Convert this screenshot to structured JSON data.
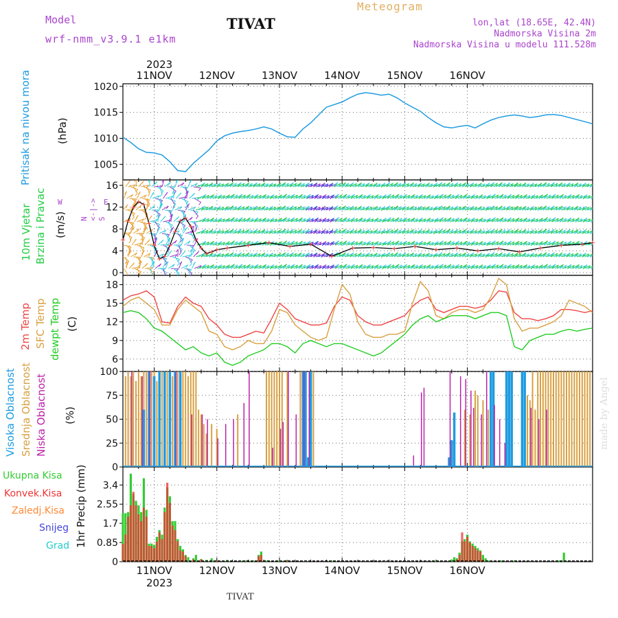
{
  "header": {
    "model_label": "Model",
    "model_name": "wrf-nmm_v3.9.1 e1km",
    "station": "TIVAT",
    "meteogram": "Meteogram",
    "lonlat": "lon,lat (18.65E, 42.4N)",
    "altitude": "Nadmorska Visina 2m",
    "model_altitude": "Nadmorska Visina u modelu 111.528m",
    "year_top": "2023",
    "year_bottom": "2023",
    "footer_station": "TIVAT",
    "watermark": "made by Angel"
  },
  "colors": {
    "pressure": "#1e9be0",
    "wind_green": "#22cc44",
    "wind_cyan": "#33ccdd",
    "wind_blue": "#3344dd",
    "wind_purple": "#9933cc",
    "wind_orange": "#e8a030",
    "t2m": "#ee4444",
    "sfc": "#d8a040",
    "dew": "#22cc22",
    "cloud_high": "#1e9be0",
    "cloud_mid": "#d8a040",
    "cloud_low": "#bb22aa",
    "precip_total": "#33cc33",
    "precip_conv": "#ee3333",
    "precip_freeze": "#ff8833",
    "precip_snow": "#4444dd",
    "precip_hail": "#22cccc"
  },
  "chart_data": [
    {
      "type": "line",
      "panel": "pressure",
      "ylabel": [
        "Pritisak na nivou mora",
        "(hPa)"
      ],
      "ylim": [
        1002,
        1020.5
      ],
      "yticks": [
        "1005",
        "1010",
        "1015",
        "1020"
      ],
      "ytick_values": [
        1005,
        1010,
        1015,
        1020
      ],
      "x": [
        0,
        3,
        6,
        9,
        12,
        15,
        18,
        21,
        24,
        27,
        30,
        33,
        36,
        39,
        42,
        45,
        48,
        51,
        54,
        57,
        60,
        63,
        66,
        69,
        72,
        75,
        78,
        81,
        84,
        87,
        90,
        93,
        96,
        99,
        102,
        105,
        108,
        111,
        114,
        117,
        120,
        123,
        126,
        129,
        132,
        135,
        138,
        141,
        144,
        147,
        150,
        153,
        156,
        159,
        162,
        165,
        168,
        171,
        174,
        177,
        180
      ],
      "values": [
        1010.2,
        1009.2,
        1008.0,
        1007.3,
        1007.2,
        1006.8,
        1005.5,
        1003.8,
        1003.6,
        1005.2,
        1006.5,
        1007.8,
        1009.5,
        1010.5,
        1011.0,
        1011.3,
        1011.5,
        1011.8,
        1012.2,
        1011.8,
        1011.0,
        1010.3,
        1010.2,
        1011.8,
        1013.0,
        1014.5,
        1016.0,
        1016.5,
        1017.0,
        1017.8,
        1018.5,
        1018.8,
        1018.6,
        1018.3,
        1018.5,
        1017.8,
        1016.8,
        1016.0,
        1015.2,
        1014.0,
        1013.0,
        1012.2,
        1012.0,
        1012.3,
        1012.5,
        1012.0,
        1012.8,
        1013.5,
        1014.0,
        1014.3,
        1014.5,
        1014.3,
        1014.0,
        1014.2,
        1014.5,
        1014.6,
        1014.4,
        1014.0,
        1013.6,
        1013.2,
        1012.8
      ]
    },
    {
      "type": "line",
      "panel": "wind",
      "ylabel": [
        "10m Vjetar",
        "Brzina i Pravac",
        "(m/s)"
      ],
      "compass": "N\n<-|->\nS",
      "compass_w": "W",
      "compass_e": "E",
      "ylim": [
        -0.5,
        17
      ],
      "yticks": [
        "0",
        "4",
        "8",
        "12",
        "16"
      ],
      "ytick_values": [
        0,
        4,
        8,
        12,
        16
      ],
      "x": [
        0,
        2,
        4,
        6,
        8,
        10,
        12,
        14,
        16,
        18,
        20,
        22,
        24,
        26,
        28,
        30,
        32,
        34,
        36,
        40,
        48,
        56,
        64,
        72,
        80,
        88,
        96,
        104,
        112,
        120,
        128,
        136,
        144,
        152,
        160,
        168,
        176,
        180
      ],
      "values": [
        6.0,
        9.5,
        12.0,
        13.0,
        12.5,
        9.0,
        5.0,
        2.5,
        3.0,
        5.0,
        7.5,
        9.5,
        10.0,
        8.5,
        6.0,
        4.5,
        3.5,
        3.8,
        4.2,
        4.5,
        5.0,
        5.5,
        4.8,
        5.2,
        3.0,
        4.5,
        4.6,
        4.4,
        4.8,
        4.2,
        4.5,
        4.0,
        4.4,
        3.8,
        4.5,
        5.0,
        5.2,
        5.5
      ]
    },
    {
      "type": "line",
      "panel": "temperature",
      "ylabel": [
        "2m Temp",
        "SFC Temp",
        "dewpt Temp",
        "(C)"
      ],
      "ylim": [
        4,
        19.5
      ],
      "yticks": [
        "6",
        "9",
        "12",
        "15",
        "18"
      ],
      "ytick_values": [
        6,
        9,
        12,
        15,
        18
      ],
      "x": [
        0,
        3,
        6,
        9,
        12,
        15,
        18,
        21,
        24,
        27,
        30,
        33,
        36,
        39,
        42,
        45,
        48,
        51,
        54,
        57,
        60,
        63,
        66,
        69,
        72,
        75,
        78,
        81,
        84,
        87,
        90,
        93,
        96,
        99,
        102,
        105,
        108,
        111,
        114,
        117,
        120,
        123,
        126,
        129,
        132,
        135,
        138,
        141,
        144,
        147,
        150,
        153,
        156,
        159,
        162,
        165,
        168,
        171,
        174,
        177,
        180
      ],
      "series": [
        {
          "name": "2m Temp",
          "values": [
            15.5,
            16.2,
            16.5,
            17.0,
            16.0,
            12.0,
            11.8,
            14.5,
            16.0,
            15.0,
            14.5,
            12.5,
            11.5,
            10.0,
            9.5,
            9.5,
            10.0,
            10.5,
            10.2,
            12.5,
            15.0,
            14.0,
            12.5,
            12.0,
            11.5,
            11.5,
            11.8,
            14.5,
            16.0,
            15.5,
            13.0,
            12.0,
            11.5,
            11.5,
            12.0,
            12.5,
            13.0,
            14.5,
            15.5,
            16.0,
            14.0,
            13.5,
            14.0,
            14.5,
            14.5,
            14.2,
            14.5,
            15.5,
            17.0,
            16.8,
            13.5,
            12.5,
            12.5,
            12.2,
            12.5,
            13.0,
            14.0,
            14.0,
            13.8,
            13.5,
            13.8
          ]
        },
        {
          "name": "SFC Temp",
          "values": [
            14.5,
            15.5,
            16.0,
            15.0,
            14.0,
            11.5,
            11.5,
            14.0,
            15.5,
            14.5,
            13.5,
            10.5,
            10.0,
            8.0,
            7.5,
            8.0,
            9.0,
            8.5,
            8.5,
            10.5,
            14.0,
            13.5,
            11.5,
            10.5,
            9.5,
            9.0,
            9.5,
            14.0,
            18.0,
            16.5,
            12.0,
            10.0,
            9.5,
            9.5,
            10.0,
            10.0,
            10.5,
            15.0,
            18.5,
            17.0,
            13.0,
            12.5,
            13.5,
            14.0,
            14.0,
            13.5,
            14.0,
            16.0,
            19.0,
            18.0,
            12.5,
            10.5,
            11.0,
            11.0,
            11.5,
            12.0,
            13.0,
            15.5,
            15.0,
            14.5,
            13.5
          ]
        },
        {
          "name": "dewpt Temp",
          "values": [
            13.5,
            13.8,
            13.5,
            12.5,
            11.0,
            10.5,
            9.5,
            8.5,
            7.5,
            8.0,
            7.0,
            6.5,
            7.0,
            5.5,
            5.0,
            5.5,
            6.5,
            7.0,
            7.5,
            8.5,
            8.5,
            8.0,
            7.0,
            8.5,
            9.0,
            8.5,
            8.0,
            8.5,
            8.5,
            8.0,
            7.5,
            7.0,
            6.5,
            7.0,
            8.0,
            9.0,
            10.0,
            11.5,
            12.5,
            13.0,
            12.0,
            12.5,
            13.0,
            13.0,
            13.0,
            12.5,
            13.0,
            13.5,
            13.5,
            13.0,
            8.0,
            7.5,
            9.0,
            9.5,
            10.0,
            10.0,
            10.5,
            10.8,
            10.5,
            10.8,
            11.0
          ]
        }
      ]
    },
    {
      "type": "bar",
      "panel": "clouds",
      "ylabel": [
        "Visoka Oblacnost",
        "Srednja Oblacnost",
        "Niska Oblacnost",
        "(%)"
      ],
      "ylim": [
        0,
        100
      ],
      "yticks": [
        "0",
        "25",
        "50",
        "75",
        "100"
      ],
      "ytick_values": [
        0,
        25,
        50,
        75,
        100
      ],
      "series": [
        {
          "name": "Visoka Oblacnost",
          "x": [
            8,
            10,
            12,
            14,
            16,
            18,
            20,
            22,
            69,
            70,
            71,
            72,
            125,
            126,
            127,
            141,
            142,
            147,
            148,
            149,
            153,
            154
          ],
          "values": [
            60,
            100,
            95,
            100,
            100,
            100,
            100,
            100,
            100,
            100,
            10,
            100,
            10,
            28,
            57,
            100,
            100,
            100,
            100,
            100,
            100,
            100
          ]
        },
        {
          "name": "Srednja Oblacnost",
          "x": [
            1,
            2,
            3,
            4,
            5,
            6,
            7,
            8,
            9,
            10,
            11,
            12,
            13,
            14,
            15,
            16,
            17,
            18,
            19,
            20,
            21,
            22,
            23,
            24,
            25,
            26,
            27,
            28,
            29,
            30,
            31,
            32,
            34,
            36,
            44,
            55,
            56,
            57,
            58,
            59,
            60,
            61,
            63,
            68,
            70,
            73,
            131,
            133,
            135,
            136,
            138,
            140,
            148,
            153,
            155,
            156,
            157,
            158,
            159,
            160,
            161,
            162,
            163,
            164,
            165,
            166,
            167,
            168,
            169,
            170,
            171,
            172,
            173,
            174,
            175,
            176,
            177,
            178,
            179
          ],
          "values": [
            95,
            100,
            95,
            100,
            90,
            100,
            95,
            100,
            100,
            95,
            100,
            100,
            90,
            100,
            100,
            95,
            100,
            100,
            95,
            100,
            100,
            100,
            100,
            100,
            95,
            100,
            100,
            100,
            60,
            55,
            45,
            35,
            45,
            40,
            55,
            100,
            100,
            100,
            100,
            100,
            100,
            100,
            100,
            100,
            100,
            100,
            60,
            55,
            80,
            75,
            70,
            60,
            100,
            100,
            75,
            70,
            100,
            60,
            100,
            100,
            100,
            100,
            100,
            100,
            100,
            100,
            100,
            100,
            100,
            100,
            100,
            100,
            100,
            100,
            100,
            100,
            100,
            100,
            100
          ]
        },
        {
          "name": "Niska Oblacnost",
          "x": [
            3,
            7,
            10,
            20,
            26,
            30,
            32,
            36,
            39,
            42,
            46,
            48,
            57,
            60,
            61,
            63,
            66,
            69,
            71,
            111,
            114,
            115,
            125,
            129,
            131,
            133,
            134,
            137,
            139,
            142,
            144,
            146,
            156,
            159,
            162
          ],
          "values": [
            100,
            95,
            100,
            100,
            55,
            55,
            50,
            30,
            45,
            50,
            67,
            100,
            20,
            40,
            47,
            100,
            55,
            100,
            100,
            12,
            78,
            83,
            100,
            95,
            92,
            80,
            62,
            55,
            100,
            65,
            50,
            25,
            62,
            50,
            60
          ]
        }
      ]
    },
    {
      "type": "bar",
      "panel": "precip",
      "ylabel": [
        "1hr Precip (mm)"
      ],
      "ylim": [
        0,
        4.2
      ],
      "yticks": [
        "0",
        "0.85",
        "1.7",
        "2.55",
        "3.4"
      ],
      "ytick_values": [
        0,
        0.85,
        1.7,
        2.55,
        3.4
      ],
      "legend": [
        "Ukupna Kisa",
        "Konvek.Kisa",
        "Zaledj.Kisa",
        "Snijeg",
        "Grad"
      ],
      "series": [
        {
          "name": "Ukupna Kisa",
          "x": [
            0,
            1,
            2,
            3,
            4,
            5,
            6,
            7,
            8,
            9,
            10,
            11,
            12,
            13,
            14,
            15,
            16,
            17,
            18,
            19,
            20,
            21,
            22,
            23,
            24,
            25,
            27,
            28,
            30,
            32,
            34,
            35,
            36,
            40,
            45,
            47,
            50,
            52,
            53,
            55,
            60,
            63,
            70,
            80,
            100,
            111,
            120,
            126,
            127,
            128,
            129,
            130,
            131,
            132,
            133,
            134,
            135,
            136,
            137,
            138,
            139,
            140,
            145,
            150,
            160,
            167,
            169
          ],
          "values": [
            2.15,
            2.15,
            2.2,
            3.9,
            3.0,
            2.7,
            2.5,
            2.2,
            3.7,
            2.3,
            0.8,
            0.8,
            0.75,
            1.1,
            1.4,
            1.2,
            2.4,
            3.3,
            2.9,
            1.8,
            1.8,
            1.0,
            0.7,
            0.55,
            0.3,
            0.2,
            0.15,
            0.3,
            0.12,
            0.08,
            0.15,
            0.05,
            0.05,
            0.08,
            0.05,
            0.05,
            0.05,
            0.3,
            0.45,
            0.05,
            0.05,
            0.08,
            0.05,
            0.05,
            0.05,
            0.05,
            0.05,
            0.1,
            0.2,
            0.15,
            0.4,
            0.9,
            1.0,
            1.2,
            0.9,
            0.8,
            0.7,
            0.6,
            0.5,
            0.3,
            0.15,
            0.05,
            0.05,
            0.05,
            0.05,
            0.05,
            0.4
          ]
        },
        {
          "name": "Konvek.Kisa",
          "x": [
            0,
            1,
            2,
            3,
            4,
            5,
            6,
            7,
            8,
            9,
            10,
            11,
            12,
            13,
            14,
            15,
            16,
            17,
            18,
            19,
            20,
            21,
            22,
            23,
            24,
            27,
            30,
            36,
            52,
            53,
            63,
            128,
            129,
            130,
            131,
            132,
            133,
            134,
            135,
            136,
            137,
            138
          ],
          "values": [
            0.8,
            1.2,
            2.0,
            2.5,
            3.1,
            2.5,
            2.1,
            1.8,
            2.4,
            2.0,
            0.7,
            0.7,
            0.6,
            0.9,
            1.3,
            1.0,
            2.2,
            3.5,
            2.6,
            1.6,
            1.4,
            0.9,
            0.5,
            0.45,
            0.25,
            0.1,
            0.1,
            0.05,
            0.25,
            0.3,
            0.05,
            0.1,
            0.3,
            1.3,
            0.9,
            1.1,
            0.85,
            0.7,
            0.6,
            0.5,
            0.45,
            0.1
          ]
        }
      ]
    }
  ],
  "time_axis": {
    "labels": [
      "11NOV",
      "12NOV",
      "13NOV",
      "14NOV",
      "15NOV",
      "16NOV"
    ],
    "label_hours": [
      12,
      36,
      60,
      84,
      108,
      132
    ],
    "start": "2023-11-10 12:00",
    "hours": 180,
    "label_offset": 12
  }
}
